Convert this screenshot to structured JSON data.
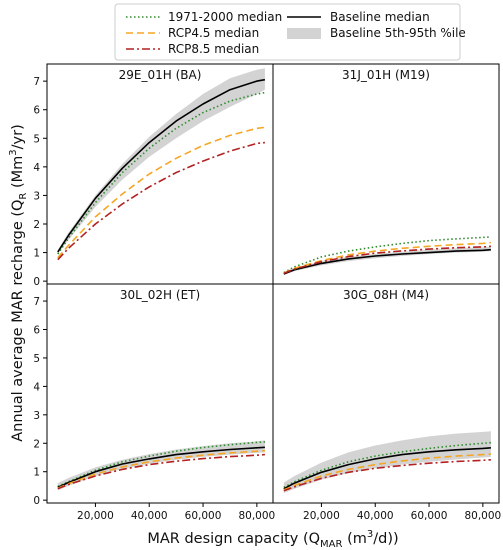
{
  "figure": {
    "ylabel": "Annual average MAR recharge (Q",
    "ylabel_sub": "R",
    "ylabel_unit": " (Mm",
    "ylabel_sup": "3",
    "ylabel_end": "/yr)",
    "xlabel": "MAR design capacity (Q",
    "xlabel_sub": "MAR",
    "xlabel_unit": " (m",
    "xlabel_sup": "3",
    "xlabel_end": "/d))"
  },
  "legend": {
    "items": [
      {
        "label": "1971-2000 median",
        "color": "#2e8b2e",
        "dash": "dotted"
      },
      {
        "label": "Baseline median",
        "color": "#000000",
        "dash": "solid"
      },
      {
        "label": "RCP4.5 median",
        "color": "#f5a623",
        "dash": "dashed"
      },
      {
        "label": "Baseline 5th-95th %ile",
        "color": "#d3d3d3",
        "dash": "band"
      },
      {
        "label": "RCP8.5 median",
        "color": "#b22222",
        "dash": "dashdot"
      }
    ]
  },
  "chart_data": [
    {
      "type": "line",
      "title": "29E_01H (BA)",
      "x": [
        6000,
        10000,
        20000,
        30000,
        40000,
        50000,
        60000,
        70000,
        80000,
        83000
      ],
      "xlim": [
        2000,
        86000
      ],
      "ylim": [
        -0.1,
        7.6
      ],
      "yticks": [
        0,
        1,
        2,
        3,
        4,
        5,
        6,
        7
      ],
      "xticks": [],
      "series": [
        {
          "name": "Baseline 5th-95th %ile",
          "kind": "band",
          "lower": [
            0.95,
            1.45,
            2.6,
            3.55,
            4.35,
            5.0,
            5.6,
            6.1,
            6.55,
            6.7
          ],
          "upper": [
            1.1,
            1.7,
            3.0,
            4.1,
            5.05,
            5.85,
            6.55,
            7.1,
            7.4,
            7.45
          ]
        },
        {
          "name": "1971-2000 median",
          "values": [
            0.95,
            1.5,
            2.75,
            3.8,
            4.65,
            5.35,
            5.9,
            6.3,
            6.55,
            6.6
          ]
        },
        {
          "name": "Baseline median",
          "values": [
            1.02,
            1.6,
            2.9,
            3.95,
            4.85,
            5.6,
            6.2,
            6.7,
            7.0,
            7.05
          ]
        },
        {
          "name": "RCP4.5 median",
          "values": [
            0.82,
            1.25,
            2.25,
            3.05,
            3.75,
            4.3,
            4.75,
            5.1,
            5.35,
            5.38
          ]
        },
        {
          "name": "RCP8.5 median",
          "values": [
            0.75,
            1.15,
            2.0,
            2.7,
            3.3,
            3.8,
            4.2,
            4.55,
            4.82,
            4.85
          ]
        }
      ]
    },
    {
      "type": "line",
      "title": "31J_01H (M19)",
      "x": [
        6000,
        10000,
        20000,
        30000,
        40000,
        50000,
        60000,
        70000,
        80000,
        83000
      ],
      "xlim": [
        2000,
        86000
      ],
      "ylim": [
        -0.1,
        7.6
      ],
      "yticks": [],
      "xticks": [],
      "series": [
        {
          "name": "Baseline 5th-95th %ile",
          "kind": "band",
          "lower": [
            0.22,
            0.35,
            0.55,
            0.7,
            0.8,
            0.88,
            0.95,
            1.0,
            1.03,
            1.05
          ],
          "upper": [
            0.3,
            0.45,
            0.7,
            0.85,
            0.95,
            1.03,
            1.1,
            1.15,
            1.18,
            1.2
          ]
        },
        {
          "name": "1971-2000 median",
          "values": [
            0.3,
            0.5,
            0.85,
            1.05,
            1.2,
            1.32,
            1.42,
            1.48,
            1.53,
            1.55
          ]
        },
        {
          "name": "Baseline median",
          "values": [
            0.25,
            0.4,
            0.62,
            0.78,
            0.88,
            0.95,
            1.0,
            1.05,
            1.08,
            1.1
          ]
        },
        {
          "name": "RCP4.5 median",
          "values": [
            0.28,
            0.45,
            0.72,
            0.92,
            1.05,
            1.15,
            1.22,
            1.28,
            1.32,
            1.35
          ]
        },
        {
          "name": "RCP8.5 median",
          "values": [
            0.27,
            0.42,
            0.68,
            0.86,
            0.98,
            1.06,
            1.12,
            1.17,
            1.2,
            1.22
          ]
        }
      ]
    },
    {
      "type": "line",
      "title": "30L_02H (ET)",
      "x": [
        6000,
        10000,
        20000,
        30000,
        40000,
        50000,
        60000,
        70000,
        80000,
        83000
      ],
      "xlim": [
        2000,
        86000
      ],
      "ylim": [
        -0.1,
        7.6
      ],
      "yticks": [
        0,
        1,
        2,
        3,
        4,
        5,
        6,
        7
      ],
      "xticks": [
        20000,
        40000,
        60000,
        80000
      ],
      "xticklabels": [
        "20,000",
        "40,000",
        "60,000",
        "80,000"
      ],
      "series": [
        {
          "name": "Baseline 5th-95th %ile",
          "kind": "band",
          "lower": [
            0.35,
            0.5,
            0.85,
            1.1,
            1.28,
            1.42,
            1.52,
            1.6,
            1.66,
            1.68
          ],
          "upper": [
            0.6,
            0.78,
            1.15,
            1.42,
            1.62,
            1.78,
            1.9,
            2.0,
            2.07,
            2.1
          ]
        },
        {
          "name": "1971-2000 median",
          "values": [
            0.48,
            0.65,
            1.05,
            1.35,
            1.55,
            1.72,
            1.85,
            1.95,
            2.03,
            2.05
          ]
        },
        {
          "name": "Baseline median",
          "values": [
            0.45,
            0.62,
            1.0,
            1.27,
            1.45,
            1.6,
            1.7,
            1.78,
            1.84,
            1.86
          ]
        },
        {
          "name": "RCP4.5 median",
          "values": [
            0.42,
            0.58,
            0.92,
            1.17,
            1.35,
            1.48,
            1.58,
            1.66,
            1.72,
            1.74
          ]
        },
        {
          "name": "RCP8.5 median",
          "values": [
            0.4,
            0.55,
            0.85,
            1.08,
            1.25,
            1.37,
            1.46,
            1.53,
            1.58,
            1.6
          ]
        }
      ]
    },
    {
      "type": "line",
      "title": "30G_08H (M4)",
      "x": [
        6000,
        10000,
        20000,
        30000,
        40000,
        50000,
        60000,
        70000,
        80000,
        83000
      ],
      "xlim": [
        2000,
        86000
      ],
      "ylim": [
        -0.1,
        7.6
      ],
      "yticks": [],
      "xticks": [
        20000,
        40000,
        60000,
        80000
      ],
      "xticklabels": [
        "20,000",
        "40,000",
        "60,000",
        "80,000"
      ],
      "series": [
        {
          "name": "Baseline 5th-95th %ile",
          "kind": "band",
          "lower": [
            0.25,
            0.4,
            0.72,
            0.95,
            1.12,
            1.25,
            1.35,
            1.43,
            1.5,
            1.52
          ],
          "upper": [
            0.62,
            0.85,
            1.32,
            1.68,
            1.92,
            2.1,
            2.24,
            2.34,
            2.4,
            2.42
          ]
        },
        {
          "name": "1971-2000 median",
          "values": [
            0.45,
            0.65,
            1.05,
            1.35,
            1.55,
            1.7,
            1.82,
            1.92,
            2.0,
            2.02
          ]
        },
        {
          "name": "Baseline median",
          "values": [
            0.4,
            0.6,
            0.98,
            1.25,
            1.45,
            1.6,
            1.7,
            1.77,
            1.82,
            1.84
          ]
        },
        {
          "name": "RCP4.5 median",
          "values": [
            0.36,
            0.52,
            0.85,
            1.08,
            1.25,
            1.38,
            1.48,
            1.55,
            1.6,
            1.62
          ]
        },
        {
          "name": "RCP8.5 median",
          "values": [
            0.33,
            0.47,
            0.77,
            0.98,
            1.12,
            1.22,
            1.3,
            1.36,
            1.4,
            1.42
          ]
        }
      ]
    }
  ]
}
